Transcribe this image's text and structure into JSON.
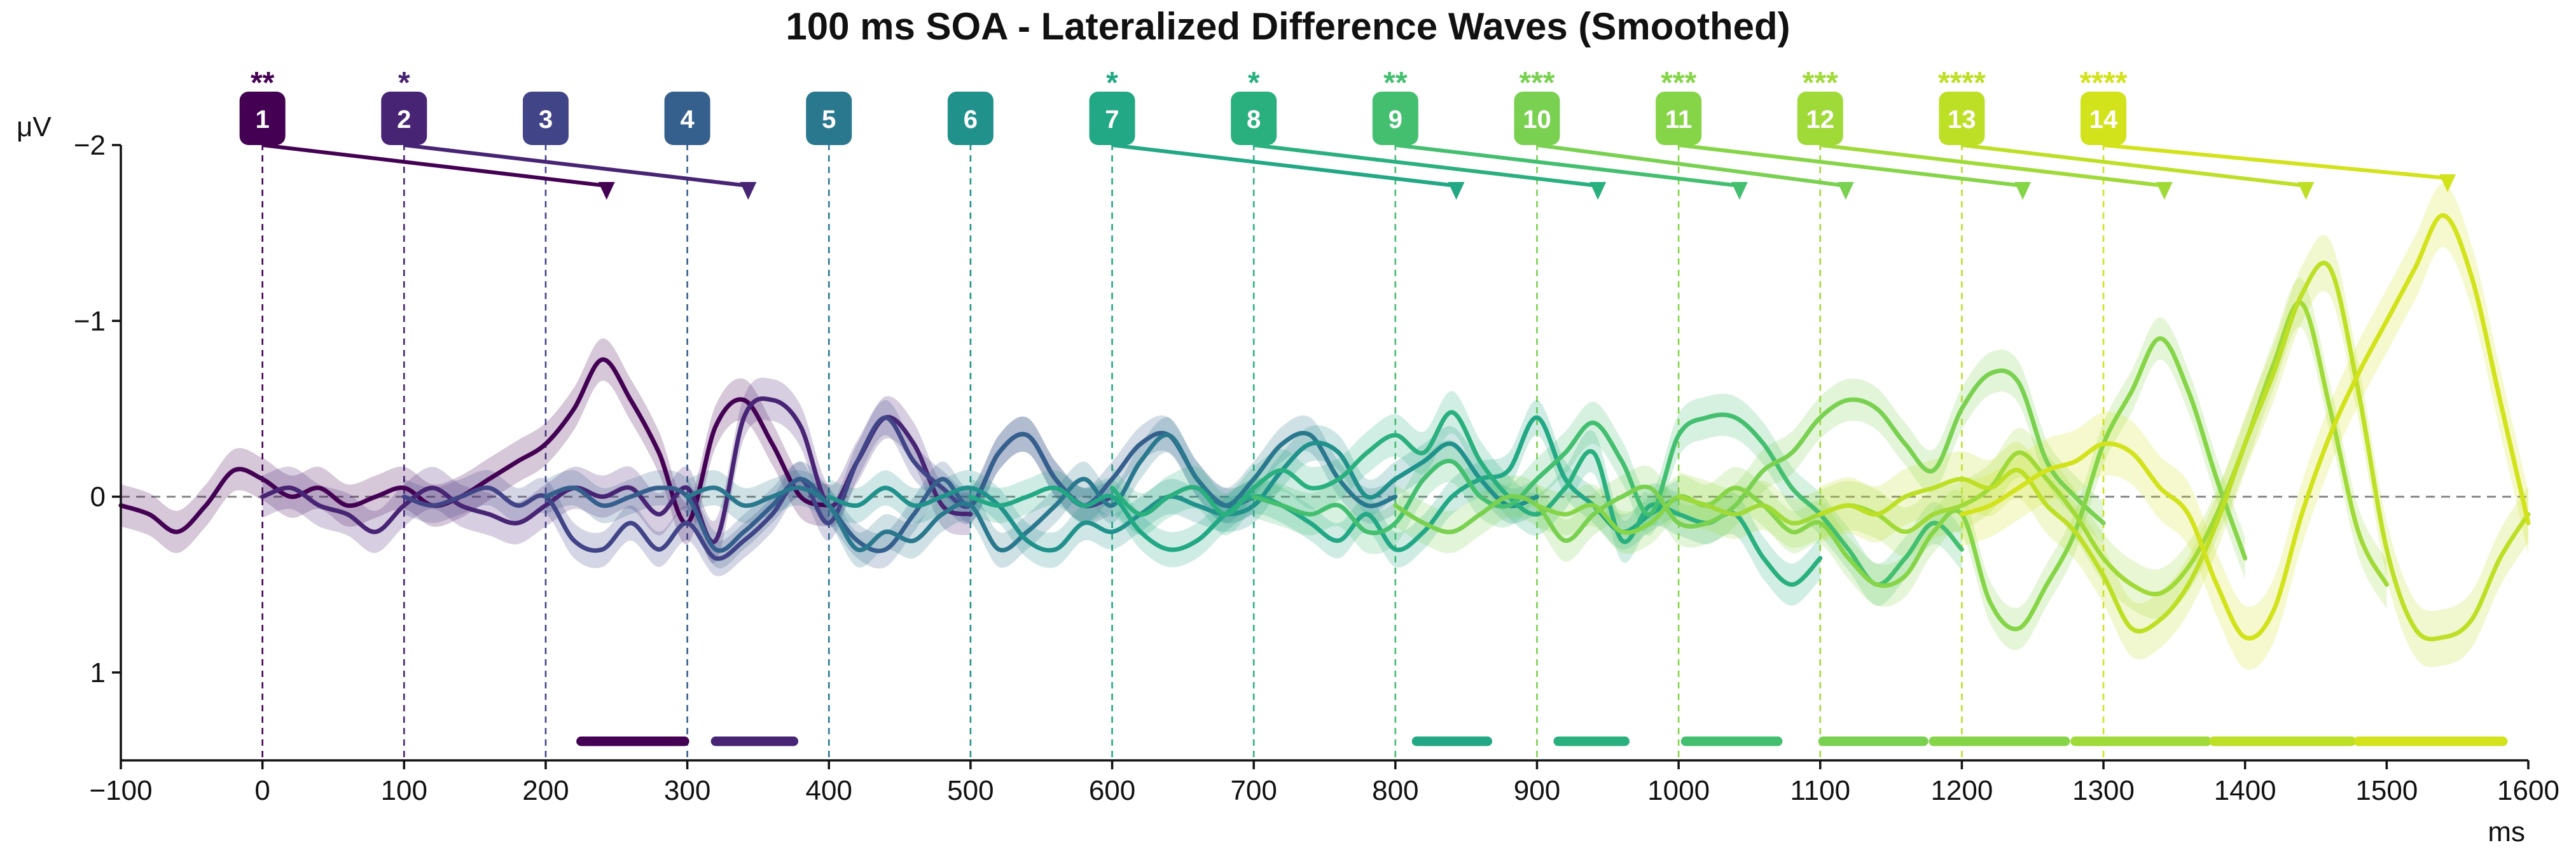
{
  "chart_data": {
    "type": "line",
    "title": "100 ms SOA - Lateralized Difference Waves (Smoothed)",
    "xlabel": "ms",
    "ylabel": "μV",
    "xlim": [
      -100,
      1600
    ],
    "ylim": [
      1.5,
      -2.0
    ],
    "y_inverted": true,
    "xticks": [
      -100,
      0,
      100,
      200,
      300,
      400,
      500,
      600,
      700,
      800,
      900,
      1000,
      1100,
      1200,
      1300,
      1400,
      1500,
      1600
    ],
    "xtick_labels": [
      "−100",
      "0",
      "100",
      "200",
      "300",
      "400",
      "500",
      "600",
      "700",
      "800",
      "900",
      "1000",
      "1100",
      "1200",
      "1300",
      "1400",
      "1500",
      "1600"
    ],
    "yticks": [
      -2,
      -1,
      0,
      1
    ],
    "ytick_labels": [
      "−2",
      "−1",
      "0",
      "1"
    ],
    "grid": false,
    "legend": "none",
    "colors": [
      "#440154",
      "#482475",
      "#414487",
      "#355f8d",
      "#2a788e",
      "#21918c",
      "#22a884",
      "#2ab07f",
      "#44bf70",
      "#7ad151",
      "#86d549",
      "#a0da39",
      "#bddf26",
      "#d2e21b"
    ],
    "stimuli": [
      {
        "label": "1",
        "onset": 0,
        "sig": "**"
      },
      {
        "label": "2",
        "onset": 100,
        "sig": "*"
      },
      {
        "label": "3",
        "onset": 200,
        "sig": ""
      },
      {
        "label": "4",
        "onset": 300,
        "sig": ""
      },
      {
        "label": "5",
        "onset": 400,
        "sig": ""
      },
      {
        "label": "6",
        "onset": 500,
        "sig": ""
      },
      {
        "label": "7",
        "onset": 600,
        "sig": "*"
      },
      {
        "label": "8",
        "onset": 700,
        "sig": "*"
      },
      {
        "label": "9",
        "onset": 800,
        "sig": "**"
      },
      {
        "label": "10",
        "onset": 900,
        "sig": "***"
      },
      {
        "label": "11",
        "onset": 1000,
        "sig": "***"
      },
      {
        "label": "12",
        "onset": 1100,
        "sig": "***"
      },
      {
        "label": "13",
        "onset": 1200,
        "sig": "****"
      },
      {
        "label": "14",
        "onset": 1300,
        "sig": "****"
      }
    ],
    "peak_arrows": [
      {
        "from": 0,
        "to": 243,
        "series": 1
      },
      {
        "from": 100,
        "to": 343,
        "series": 2
      },
      {
        "from": 600,
        "to": 843,
        "series": 7
      },
      {
        "from": 700,
        "to": 943,
        "series": 8
      },
      {
        "from": 800,
        "to": 1043,
        "series": 9
      },
      {
        "from": 900,
        "to": 1118,
        "series": 10
      },
      {
        "from": 1000,
        "to": 1243,
        "series": 11
      },
      {
        "from": 1100,
        "to": 1343,
        "series": 12
      },
      {
        "from": 1200,
        "to": 1443,
        "series": 13
      },
      {
        "from": 1300,
        "to": 1543,
        "series": 14
      }
    ],
    "significance_bars": [
      {
        "start": 225,
        "end": 298,
        "series": 1
      },
      {
        "start": 320,
        "end": 375,
        "series": 2
      },
      {
        "start": 815,
        "end": 865,
        "series": 7
      },
      {
        "start": 915,
        "end": 962,
        "series": 8
      },
      {
        "start": 1005,
        "end": 1070,
        "series": 9
      },
      {
        "start": 1102,
        "end": 1173,
        "series": 10
      },
      {
        "start": 1180,
        "end": 1273,
        "series": 11
      },
      {
        "start": 1280,
        "end": 1373,
        "series": 12
      },
      {
        "start": 1378,
        "end": 1475,
        "series": 13
      },
      {
        "start": 1480,
        "end": 1582,
        "series": 14
      }
    ],
    "series": [
      {
        "x": [
          -100,
          -80,
          -60,
          -40,
          -20,
          0,
          20,
          40,
          60,
          80,
          100,
          120,
          140,
          160,
          180,
          200,
          220,
          240,
          260,
          280,
          300,
          320,
          340,
          360,
          380,
          400
        ],
        "y": [
          0.05,
          0.1,
          0.2,
          0.05,
          -0.15,
          -0.1,
          0,
          -0.05,
          0.05,
          0,
          -0.05,
          0.05,
          0,
          -0.1,
          -0.2,
          -0.3,
          -0.5,
          -0.78,
          -0.55,
          -0.25,
          0.15,
          -0.4,
          -0.55,
          -0.3,
          0,
          0.05
        ],
        "band": 0.12
      },
      {
        "x": [
          0,
          20,
          40,
          60,
          80,
          100,
          120,
          140,
          160,
          180,
          200,
          220,
          240,
          260,
          280,
          300,
          320,
          340,
          360,
          380,
          400,
          420,
          440,
          460,
          480,
          500
        ],
        "y": [
          0,
          -0.05,
          0.05,
          0.1,
          0.2,
          0.05,
          -0.05,
          0.05,
          0.1,
          0.15,
          0.05,
          -0.05,
          0,
          -0.05,
          0.1,
          -0.05,
          0.25,
          -0.45,
          -0.55,
          -0.4,
          0.05,
          -0.2,
          -0.45,
          -0.3,
          0.05,
          0.1
        ],
        "band": 0.12
      },
      {
        "x": [
          100,
          120,
          140,
          160,
          180,
          200,
          220,
          240,
          260,
          280,
          300,
          320,
          340,
          360,
          380,
          400,
          420,
          440,
          460,
          480,
          500,
          520,
          540,
          560,
          580,
          600
        ],
        "y": [
          0,
          0.05,
          0,
          -0.05,
          0.05,
          0,
          0.25,
          0.3,
          0.15,
          0.3,
          0.15,
          0.35,
          0.25,
          0.1,
          -0.1,
          0.15,
          -0.2,
          -0.45,
          -0.2,
          -0.05,
          0.05,
          -0.25,
          -0.35,
          -0.1,
          0.05,
          0
        ],
        "band": 0.1
      },
      {
        "x": [
          200,
          220,
          240,
          260,
          280,
          300,
          320,
          340,
          360,
          380,
          400,
          420,
          440,
          460,
          480,
          500,
          520,
          540,
          560,
          580,
          600,
          620,
          640,
          660,
          680,
          700
        ],
        "y": [
          0,
          -0.05,
          0.05,
          0,
          -0.05,
          0,
          0.3,
          0.2,
          0.05,
          -0.1,
          0.05,
          0.25,
          0.3,
          0.1,
          -0.1,
          0.05,
          -0.25,
          -0.35,
          -0.1,
          0.05,
          -0.1,
          -0.3,
          -0.35,
          -0.1,
          0.05,
          0
        ],
        "band": 0.1
      },
      {
        "x": [
          300,
          320,
          340,
          360,
          380,
          400,
          420,
          440,
          460,
          480,
          500,
          520,
          540,
          560,
          580,
          600,
          620,
          640,
          660,
          680,
          700,
          720,
          740,
          760,
          780,
          800
        ],
        "y": [
          0,
          -0.05,
          0.05,
          0,
          -0.05,
          0.05,
          0.3,
          0.2,
          0.25,
          0.1,
          0.05,
          0.3,
          0.2,
          0.05,
          -0.1,
          0.05,
          -0.2,
          -0.35,
          -0.1,
          0.05,
          -0.1,
          -0.3,
          -0.35,
          -0.1,
          0.05,
          0
        ],
        "band": 0.1
      },
      {
        "x": [
          400,
          420,
          440,
          460,
          480,
          500,
          520,
          540,
          560,
          580,
          600,
          620,
          640,
          660,
          680,
          700,
          720,
          740,
          760,
          780,
          800,
          820,
          840,
          860,
          880,
          900
        ],
        "y": [
          0,
          0.05,
          -0.05,
          0.05,
          0,
          -0.05,
          0.05,
          0.25,
          0.3,
          0.15,
          0.2,
          0.1,
          0,
          0.05,
          0.1,
          0.05,
          -0.15,
          -0.3,
          -0.25,
          0,
          -0.1,
          -0.2,
          -0.3,
          -0.1,
          0.05,
          0
        ],
        "band": 0.1
      },
      {
        "x": [
          500,
          520,
          540,
          560,
          580,
          600,
          620,
          640,
          660,
          680,
          700,
          720,
          740,
          760,
          780,
          800,
          820,
          840,
          860,
          880,
          900,
          920,
          940,
          960,
          980,
          1000
        ],
        "y": [
          0,
          0.05,
          0,
          -0.05,
          0.05,
          0,
          0.2,
          0.3,
          0.25,
          0.1,
          0,
          0.05,
          0.15,
          0.25,
          0.1,
          0.3,
          0.2,
          0,
          -0.1,
          -0.15,
          -0.45,
          -0.1,
          0.05,
          0.2,
          0.1,
          0
        ],
        "band": 0.1
      },
      {
        "x": [
          600,
          620,
          640,
          660,
          680,
          700,
          720,
          740,
          760,
          780,
          800,
          820,
          840,
          860,
          880,
          900,
          920,
          940,
          960,
          980,
          1000,
          1020,
          1040,
          1060,
          1080,
          1100
        ],
        "y": [
          -0.05,
          0.1,
          0,
          -0.05,
          0.1,
          -0.05,
          -0.15,
          -0.05,
          -0.1,
          -0.25,
          -0.35,
          -0.25,
          -0.48,
          -0.2,
          0,
          0.1,
          -0.05,
          -0.25,
          0.25,
          0.05,
          0.1,
          0.15,
          0.1,
          0.35,
          0.5,
          0.35
        ],
        "band": 0.12
      },
      {
        "x": [
          700,
          720,
          740,
          760,
          780,
          800,
          820,
          840,
          860,
          880,
          900,
          920,
          940,
          960,
          980,
          1000,
          1020,
          1040,
          1060,
          1080,
          1100,
          1120,
          1140,
          1160,
          1180,
          1200
        ],
        "y": [
          0,
          0.05,
          0.1,
          0.05,
          0.2,
          0.15,
          -0.1,
          -0.2,
          0,
          0.05,
          -0.1,
          -0.25,
          -0.42,
          -0.2,
          0.1,
          -0.35,
          -0.45,
          -0.45,
          -0.3,
          -0.05,
          0.1,
          0.3,
          0.5,
          0.35,
          0.15,
          0.3
        ],
        "band": 0.12
      },
      {
        "x": [
          800,
          820,
          840,
          860,
          880,
          900,
          920,
          940,
          960,
          980,
          1000,
          1020,
          1040,
          1060,
          1080,
          1100,
          1120,
          1140,
          1160,
          1180,
          1200,
          1220,
          1240,
          1260,
          1280,
          1300
        ],
        "y": [
          0.05,
          0.15,
          0.2,
          0.1,
          0,
          0.05,
          0.25,
          0.1,
          0,
          -0.05,
          0.15,
          0.15,
          0.05,
          -0.15,
          -0.25,
          -0.45,
          -0.55,
          -0.5,
          -0.3,
          -0.15,
          -0.5,
          -0.7,
          -0.65,
          -0.2,
          0,
          0.15
        ],
        "band": 0.12
      },
      {
        "x": [
          900,
          920,
          940,
          960,
          980,
          1000,
          1020,
          1040,
          1060,
          1080,
          1100,
          1120,
          1140,
          1160,
          1180,
          1200,
          1220,
          1240,
          1260,
          1280,
          1300,
          1320,
          1340,
          1360,
          1380,
          1400
        ],
        "y": [
          0.05,
          0.1,
          0.05,
          0.2,
          0.15,
          0,
          0.05,
          -0.05,
          0.05,
          0.2,
          0.15,
          0.35,
          0.5,
          0.45,
          0.2,
          0.1,
          0.6,
          0.75,
          0.5,
          0.2,
          -0.3,
          -0.6,
          -0.9,
          -0.6,
          -0.1,
          0.35
        ],
        "band": 0.12
      },
      {
        "x": [
          1000,
          1020,
          1040,
          1060,
          1080,
          1100,
          1120,
          1140,
          1160,
          1180,
          1200,
          1220,
          1240,
          1260,
          1280,
          1300,
          1320,
          1340,
          1360,
          1380,
          1400,
          1420,
          1440,
          1460,
          1480,
          1500
        ],
        "y": [
          0,
          0.05,
          0.1,
          0.05,
          0.15,
          0.1,
          0.05,
          0.1,
          0.2,
          0.1,
          0.05,
          -0.05,
          -0.25,
          -0.1,
          0.1,
          0.35,
          0.5,
          0.55,
          0.4,
          0.1,
          -0.3,
          -0.75,
          -1.1,
          -0.5,
          0.2,
          0.5
        ],
        "band": 0.14
      },
      {
        "x": [
          1100,
          1120,
          1140,
          1160,
          1180,
          1200,
          1220,
          1240,
          1260,
          1280,
          1300,
          1320,
          1340,
          1360,
          1380,
          1400,
          1420,
          1440,
          1460,
          1480,
          1500,
          1520,
          1540,
          1560,
          1580,
          1600
        ],
        "y": [
          0.1,
          0.05,
          0.1,
          0,
          -0.05,
          -0.1,
          -0.05,
          -0.15,
          0.05,
          0.2,
          0.45,
          0.75,
          0.7,
          0.5,
          0.15,
          -0.3,
          -0.7,
          -1.15,
          -1.3,
          -0.6,
          0.3,
          0.75,
          0.8,
          0.7,
          0.35,
          0.1
        ],
        "band": 0.16
      },
      {
        "x": [
          1200,
          1220,
          1240,
          1260,
          1280,
          1300,
          1320,
          1340,
          1360,
          1380,
          1400,
          1420,
          1440,
          1460,
          1480,
          1500,
          1520,
          1540,
          1560,
          1580,
          1600
        ],
        "y": [
          0.1,
          0.05,
          -0.05,
          -0.15,
          -0.2,
          -0.3,
          -0.25,
          -0.05,
          0.1,
          0.5,
          0.8,
          0.65,
          0.1,
          -0.35,
          -0.7,
          -1.0,
          -1.3,
          -1.6,
          -1.25,
          -0.55,
          0.15
        ],
        "band": 0.18
      }
    ]
  }
}
